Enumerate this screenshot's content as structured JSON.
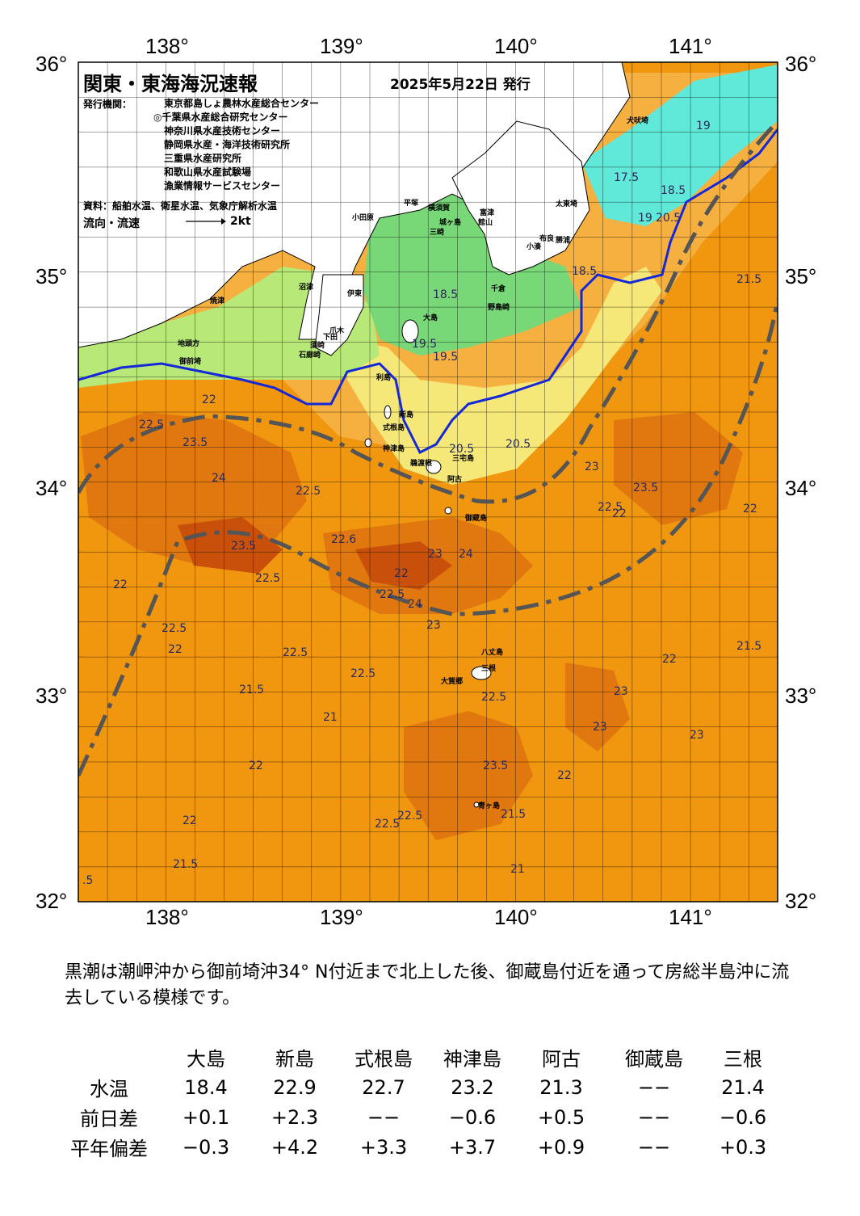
{
  "title": "関東・東海海況速報",
  "issue_date": "2025年5月22日 発行",
  "publisher_label": "発行機関：",
  "organizations": [
    "東京都島しょ農林水産総合センター",
    "◎千葉県水産総合研究センター",
    "神奈川県水産技術センター",
    "静岡県水産・海洋技術研究所",
    "三重県水産研究所",
    "和歌山県水産試験場",
    "漁業情報サービスセンター"
  ],
  "sources": "資料：船舶水温、衛星水温、気象庁解析水温",
  "current_legend_label": "流向・流速",
  "current_legend_unit": "2kt",
  "map": {
    "lon_ticks": [
      "138°",
      "139°",
      "140°",
      "141°"
    ],
    "lat_ticks": [
      "36°",
      "35°",
      "34°",
      "33°",
      "32°"
    ],
    "colors": {
      "warm_dark": "#c8500a",
      "warm_mid": "#e0780f",
      "warm_orange": "#f0960f",
      "light_orange": "#f5b040",
      "yellow": "#f5e878",
      "light_green": "#b8e878",
      "green": "#78d878",
      "cyan": "#60e8d8",
      "kuroshio_axis": "#555555",
      "front_line": "#1428d8"
    }
  },
  "place_names": [
    "犬吠埼",
    "太東埼",
    "勝浦",
    "小湊",
    "布良",
    "館山",
    "千倉",
    "野島崎",
    "平塚",
    "横須賀",
    "城ヶ島",
    "富津",
    "三崎",
    "小田原",
    "大島",
    "伊東",
    "沼津",
    "焼津",
    "御前埼",
    "地頭方",
    "石廊崎",
    "下田",
    "須崎",
    "爪木",
    "利島",
    "新島",
    "式根島",
    "神津島",
    "三宅島",
    "阿古",
    "御蔵島",
    "八丈島",
    "三根",
    "大賀郷",
    "青ヶ島",
    "鵜渡根"
  ],
  "contour_labels": [
    "19",
    "17.5",
    "18.5",
    "19",
    "20.5",
    "18.5",
    "21.5",
    "18.5",
    "19.5",
    "19.5",
    "20.5",
    "20.5",
    "22",
    "22.5",
    "23.5",
    "24",
    "22.5",
    "23.5",
    "22.5",
    "22",
    "22.5",
    "23",
    "22.5",
    "22",
    "23.5",
    "22.5",
    "23",
    "22",
    "21.5",
    "22",
    "21.5",
    "22.5",
    "22",
    "21",
    "22.5",
    "22.5",
    "23",
    "22",
    "21.5",
    "23.5",
    "22",
    "22.5",
    "22.5",
    "21.5",
    "21",
    "22.6",
    "22",
    "23",
    "24",
    "24",
    "23",
    "23",
    "22",
    ".5"
  ],
  "summary": "黒潮は潮岬沖から御前埼沖34° N付近まで北上した後、御蔵島付近を通って房総半島沖に流去している模様です。",
  "table": {
    "columns": [
      "大島",
      "新島",
      "式根島",
      "神津島",
      "阿古",
      "御蔵島",
      "三根"
    ],
    "rows": [
      {
        "label": "水温",
        "values": [
          "18.4",
          "22.9",
          "22.7",
          "23.2",
          "21.3",
          "−−",
          "21.4"
        ]
      },
      {
        "label": "前日差",
        "values": [
          "+0.1",
          "+2.3",
          "−−",
          "−0.6",
          "+0.5",
          "−−",
          "−0.6"
        ]
      },
      {
        "label": "平年偏差",
        "values": [
          "−0.3",
          "+4.2",
          "+3.3",
          "+3.7",
          "+0.9",
          "−−",
          "+0.3"
        ]
      }
    ]
  }
}
